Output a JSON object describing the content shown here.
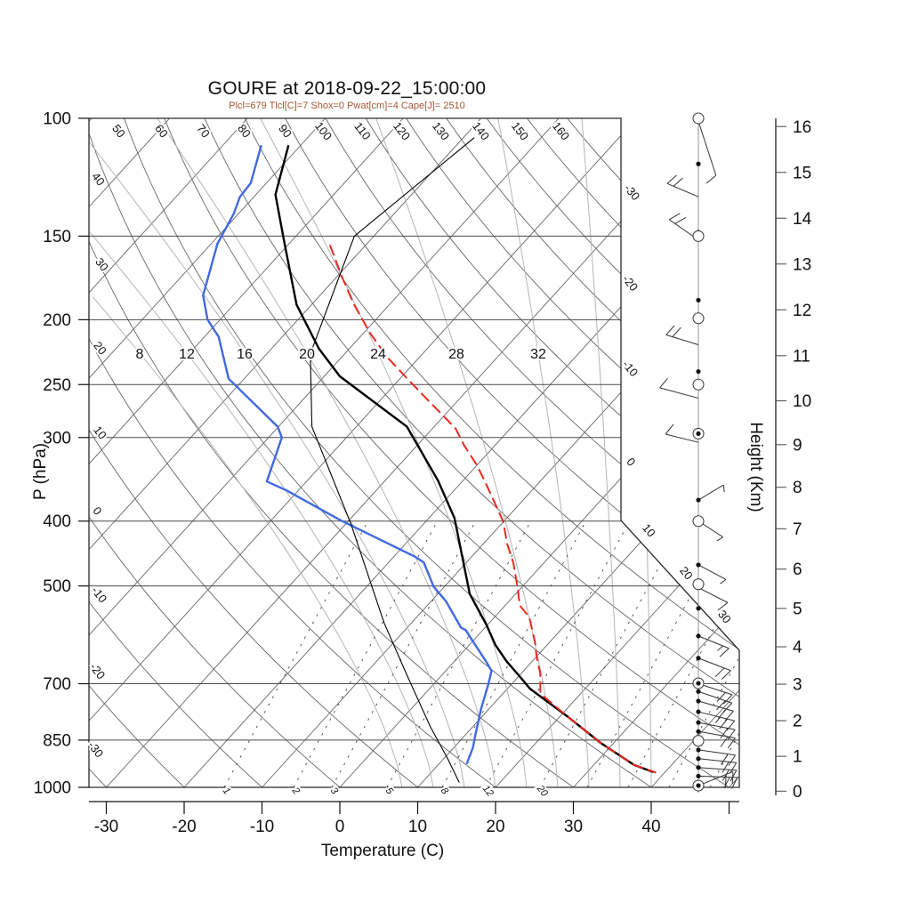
{
  "title": "GOURE at 2018-09-22_15:00:00",
  "subtitle": "Plcl=679 Tlcl[C]=7 Shox=0 Pwat[cm]=4 Cape[J]= 2510",
  "colors": {
    "temperature": "#000000",
    "dewpoint": "#4169e1",
    "parcel": "#e8291f",
    "wet_bulb": "#000000",
    "subtitle": "#a85432",
    "grid_dark": "#666666",
    "grid_light": "#b5b5b5",
    "frame": "#2a2a2a"
  },
  "axes": {
    "pressure_label": "P (hPa)",
    "temperature_label": "Temperature (C)",
    "height_label": "Height (Km)",
    "pressure_ticks": [
      100,
      150,
      200,
      250,
      300,
      400,
      500,
      700,
      850,
      1000
    ],
    "pressure_gridlines": [
      150,
      200,
      250,
      300,
      400,
      500,
      700,
      850
    ],
    "temperature_ticks": [
      -30,
      -20,
      -10,
      0,
      10,
      20,
      30,
      40
    ],
    "extra_unlabeled_temp_tick": 50,
    "height_ticks_km": [
      0,
      1,
      2,
      3,
      4,
      5,
      6,
      7,
      8,
      9,
      10,
      11,
      12,
      13,
      14,
      15,
      16
    ]
  },
  "chart_data": {
    "type": "line",
    "subtype": "skew-T log-p sounding",
    "x_axis": {
      "label": "Temperature (C)",
      "range_c": [
        -35,
        50
      ]
    },
    "y_axis": {
      "label": "P (hPa)",
      "range_hpa": [
        100,
        1000
      ],
      "scale": "log"
    },
    "series": [
      {
        "name": "temperature",
        "color": "#000000",
        "width": 2.4,
        "dash": null,
        "points_p_T": [
          [
            110,
            -81.5
          ],
          [
            130,
            -77.5
          ],
          [
            155,
            -70.3
          ],
          [
            190,
            -61.9
          ],
          [
            221,
            -53.9
          ],
          [
            243,
            -48
          ],
          [
            289,
            -33.5
          ],
          [
            348,
            -23.2
          ],
          [
            396,
            -16.7
          ],
          [
            514,
            -5.9
          ],
          [
            571,
            -0.2
          ],
          [
            613,
            3.4
          ],
          [
            648,
            6.7
          ],
          [
            679,
            9.8
          ],
          [
            712,
            12.9
          ],
          [
            782,
            20.8
          ],
          [
            858,
            28.3
          ],
          [
            926,
            35.2
          ],
          [
            948,
            38.4
          ]
        ]
      },
      {
        "name": "dewpoint",
        "color": "#4169e1",
        "width": 2.4,
        "dash": null,
        "points_p_T": [
          [
            110,
            -85
          ],
          [
            125,
            -82
          ],
          [
            131,
            -81.8
          ],
          [
            139,
            -80.6
          ],
          [
            154,
            -79.2
          ],
          [
            184,
            -75
          ],
          [
            200,
            -71.6
          ],
          [
            212,
            -68.2
          ],
          [
            245,
            -62
          ],
          [
            289,
            -50.1
          ],
          [
            300,
            -48.3
          ],
          [
            349,
            -45.1
          ],
          [
            360,
            -41.5
          ],
          [
            400,
            -30.8
          ],
          [
            452,
            -17.3
          ],
          [
            461,
            -15.5
          ],
          [
            501,
            -11.4
          ],
          [
            527,
            -8.1
          ],
          [
            577,
            -3.1
          ],
          [
            582,
            -2.2
          ],
          [
            614,
            0.9
          ],
          [
            652,
            4.4
          ],
          [
            670,
            5.9
          ],
          [
            703,
            7.1
          ],
          [
            761,
            8.9
          ],
          [
            832,
            11.2
          ],
          [
            874,
            12.5
          ],
          [
            920,
            13.5
          ]
        ]
      },
      {
        "name": "wet_bulb",
        "color": "#000000",
        "width": 1.1,
        "dash": null,
        "points_p_T": [
          [
            107,
            -58.6
          ],
          [
            150,
            -62.5
          ],
          [
            225,
            -54.4
          ],
          [
            289,
            -45.7
          ],
          [
            405,
            -29.2
          ],
          [
            568,
            -13.5
          ],
          [
            678,
            -4.6
          ],
          [
            811,
            4.5
          ],
          [
            906,
            10.5
          ],
          [
            982,
            14.7
          ]
        ]
      },
      {
        "name": "parcel",
        "color": "#e8291f",
        "width": 2.0,
        "dash": [
          11,
          7
        ],
        "points_p_T": [
          [
            155,
            -64.5
          ],
          [
            172,
            -59.5
          ],
          [
            190,
            -54.5
          ],
          [
            210,
            -49
          ],
          [
            228,
            -44
          ],
          [
            247,
            -38.5
          ],
          [
            291,
            -27
          ],
          [
            308,
            -24
          ],
          [
            330,
            -20
          ],
          [
            353,
            -16.5
          ],
          [
            378,
            -13
          ],
          [
            401,
            -10
          ],
          [
            432,
            -7
          ],
          [
            461,
            -4
          ],
          [
            499,
            -0.8
          ],
          [
            535,
            1.9
          ],
          [
            556,
            4.4
          ],
          [
            608,
            8.2
          ],
          [
            636,
            9.9
          ],
          [
            675,
            12.4
          ],
          [
            724,
            14.8
          ],
          [
            782,
            20.8
          ],
          [
            858,
            28.3
          ],
          [
            926,
            35.2
          ],
          [
            950,
            38.8
          ]
        ]
      }
    ],
    "grid": {
      "isotherms_c": [
        -110,
        -100,
        -90,
        -80,
        -70,
        -60,
        -50,
        -40,
        -30,
        -20,
        -10,
        0,
        10,
        20,
        30,
        40,
        50
      ],
      "dry_adiabats_theta_c": [
        -30,
        -20,
        -10,
        0,
        10,
        20,
        30,
        40,
        50,
        60,
        70,
        80,
        90,
        100,
        110,
        120,
        130,
        140,
        150,
        160
      ],
      "moist_adiabats": [
        [
          8,
          295
        ],
        [
          12,
          277
        ],
        [
          16,
          247
        ],
        [
          20,
          212
        ],
        [
          24,
          167
        ],
        [
          28,
          114
        ],
        [
          32,
          57
        ],
        [
          36,
          24
        ],
        [
          40,
          10
        ]
      ],
      "mixing_ratio_labeled": [
        [
          1,
          252
        ],
        [
          2,
          330
        ],
        [
          3,
          373
        ],
        [
          5,
          435
        ],
        [
          8,
          497
        ],
        [
          12,
          546
        ],
        [
          20,
          607
        ]
      ],
      "mixing_ratio_unlabeled_x": [
        660,
        706,
        752,
        798
      ]
    },
    "grid_labels": {
      "left_adiabat": [
        [
          40,
          107,
          204
        ],
        [
          30,
          111,
          300
        ],
        [
          20,
          109,
          394
        ],
        [
          10,
          109,
          489
        ],
        [
          0,
          106,
          577
        ],
        [
          -10,
          108,
          671
        ],
        [
          -20,
          106,
          757
        ],
        [
          -30,
          104,
          845
        ]
      ],
      "top_adiabat": {
        "values": [
          50,
          60,
          70,
          80,
          90,
          100,
          110,
          120,
          130,
          140,
          150,
          160
        ],
        "x": [
          130,
          178,
          225,
          271,
          317,
          360,
          404,
          448,
          492,
          537,
          581,
          627
        ],
        "y": 150
      },
      "right_isotherm": [
        [
          -30,
          707,
          219
        ],
        [
          -20,
          705,
          321
        ],
        [
          -10,
          705,
          417
        ],
        [
          0,
          706,
          522
        ],
        [
          10,
          726,
          599
        ],
        [
          20,
          768,
          647
        ],
        [
          30,
          811,
          696
        ]
      ],
      "moist_row": {
        "values": [
          8,
          12,
          16,
          20,
          24,
          28,
          32
        ],
        "x": [
          157,
          210,
          275,
          345,
          425,
          513,
          605
        ],
        "y": 397
      }
    },
    "wind_column": {
      "circles_hpa": [
        100,
        150,
        199,
        250,
        400,
        497,
        852
      ],
      "dots_hpa": [
        117,
        148,
        187,
        239,
        372,
        465,
        503,
        540,
        594,
        641,
        719,
        743,
        771,
        800,
        825,
        879,
        906,
        934,
        962,
        1006
      ],
      "circledots_hpa": [
        296,
        699,
        994
      ],
      "barbs": [
        {
          "p": 101,
          "ang": 72,
          "len": 64,
          "full": 1,
          "half": 0,
          "off": 68
        },
        {
          "p": 131,
          "ang": 203,
          "len": 38,
          "full": 2,
          "half": 0
        },
        {
          "p": 152,
          "ang": 215,
          "len": 40,
          "full": 2,
          "half": 0
        },
        {
          "p": 218,
          "ang": 197,
          "len": 38,
          "full": 2,
          "half": 0
        },
        {
          "p": 262,
          "ang": 195,
          "len": 45,
          "full": 1,
          "half": 0
        },
        {
          "p": 305,
          "ang": 194,
          "len": 38,
          "full": 1,
          "half": 0
        },
        {
          "p": 372,
          "ang": -31,
          "len": 33,
          "full": 0,
          "half": 1
        },
        {
          "p": 400,
          "ang": 33,
          "len": 33,
          "full": 0,
          "half": 1
        },
        {
          "p": 465,
          "ang": 28,
          "len": 35,
          "full": 0,
          "half": 1
        },
        {
          "p": 503,
          "ang": 27,
          "len": 37,
          "full": 1,
          "half": 0
        },
        {
          "p": 594,
          "ang": 22,
          "len": 37,
          "full": 1,
          "half": 1
        },
        {
          "p": 641,
          "ang": 21,
          "len": 39,
          "full": 2,
          "half": 0
        },
        {
          "p": 700,
          "ang": 18,
          "len": 40,
          "full": 2,
          "half": 0
        },
        {
          "p": 719,
          "ang": 19,
          "len": 40,
          "full": 2,
          "half": 0
        },
        {
          "p": 743,
          "ang": 16,
          "len": 41,
          "full": 2,
          "half": 0
        },
        {
          "p": 771,
          "ang": 14,
          "len": 42,
          "full": 2,
          "half": 1
        },
        {
          "p": 800,
          "ang": 11,
          "len": 42,
          "full": 2,
          "half": 0
        },
        {
          "p": 825,
          "ang": 10,
          "len": 42,
          "full": 2,
          "half": 0
        },
        {
          "p": 879,
          "ang": 8,
          "len": 42,
          "full": 2,
          "half": 0
        },
        {
          "p": 906,
          "ang": 6,
          "len": 43,
          "full": 2,
          "half": 0
        },
        {
          "p": 934,
          "ang": 4,
          "len": 43,
          "full": 2,
          "half": 0
        },
        {
          "p": 962,
          "ang": 2,
          "len": 44,
          "full": 2,
          "half": 0
        },
        {
          "p": 994,
          "ang": -22,
          "len": 42,
          "full": 2,
          "half": 0
        }
      ]
    }
  }
}
